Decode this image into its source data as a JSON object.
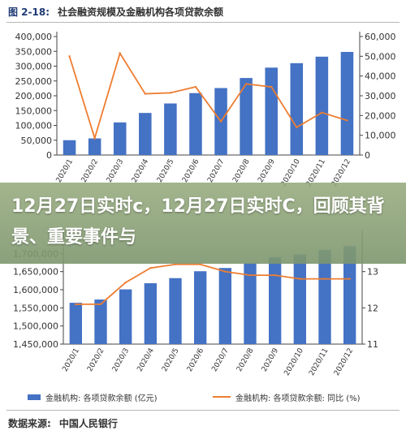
{
  "figure": {
    "number": "图 2-18:",
    "title": "社会融资规模及金融机构各项贷款余额",
    "source_label": "数据来源:",
    "source_value": "中国人民银行"
  },
  "overlay": {
    "text": "12月27日实时c，12月27日实时C，回顾其背景、重要事件与"
  },
  "colors": {
    "bar": "#4472c4",
    "line": "#ed7d31"
  },
  "chart_data": [
    {
      "type": "bar",
      "categories": [
        "2020/1",
        "2020/2",
        "2020/3",
        "2020/4",
        "2020/5",
        "2020/6",
        "2020/7",
        "2020/8",
        "2020/9",
        "2020/10",
        "2020/11",
        "2020/12"
      ],
      "y_left": {
        "lim": [
          0,
          400000
        ],
        "ticks": [
          "0",
          "50,000",
          "100,000",
          "150,000",
          "200,000",
          "250,000",
          "300,000",
          "350,000",
          "400,000"
        ]
      },
      "y_right": {
        "lim": [
          0,
          60000
        ],
        "ticks": [
          "0",
          "10,000",
          "20,000",
          "30,000",
          "40,000",
          "50,000",
          "60,000"
        ]
      },
      "series": [
        {
          "kind": "bar",
          "axis": "left",
          "values": [
            50000,
            56000,
            110000,
            142000,
            174000,
            209000,
            226000,
            260000,
            295000,
            310000,
            332000,
            348000
          ]
        },
        {
          "kind": "line",
          "axis": "right",
          "values": [
            50000,
            8500,
            51500,
            31000,
            31500,
            34500,
            17000,
            36000,
            34500,
            14000,
            21500,
            17500
          ]
        }
      ]
    },
    {
      "type": "bar",
      "categories": [
        "2020/1",
        "2020/2",
        "2020/3",
        "2020/4",
        "2020/5",
        "2020/6",
        "2020/7",
        "2020/8",
        "2020/9",
        "2020/10",
        "2020/11",
        "2020/12"
      ],
      "y_left": {
        "lim": [
          1450000,
          1750000
        ],
        "ticks": [
          "1,450,000",
          "1,500,000",
          "1,550,000",
          "1,600,000",
          "1,650,000",
          "1,700,000"
        ]
      },
      "y_right": {
        "lim": [
          11,
          14
        ],
        "ticks": [
          "11",
          "12",
          "13"
        ]
      },
      "series": [
        {
          "kind": "bar",
          "axis": "left",
          "name": "金融机构: 各项贷款余额 (亿元)",
          "values": [
            1564000,
            1573000,
            1601000,
            1618000,
            1632000,
            1651000,
            1660000,
            1673000,
            1690000,
            1697000,
            1710000,
            1720000
          ]
        },
        {
          "kind": "line",
          "axis": "right",
          "name": "金融机构: 各项贷款余额: 同比 (%)",
          "values": [
            12.1,
            12.1,
            12.7,
            13.1,
            13.2,
            13.2,
            13.0,
            12.9,
            12.9,
            12.8,
            12.8,
            12.8
          ]
        }
      ]
    }
  ]
}
